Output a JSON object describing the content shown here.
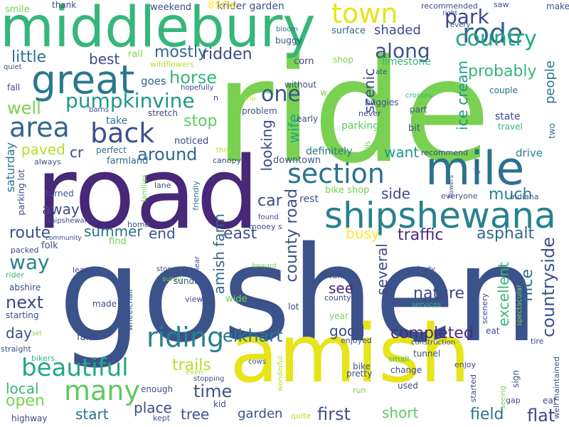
{
  "words": [
    {
      "t": "goshen",
      "c": "#3b528b"
    },
    {
      "t": "ride",
      "c": "#7ad151"
    },
    {
      "t": "road",
      "c": "#482878"
    },
    {
      "t": "amish",
      "c": "#e7e419"
    },
    {
      "t": "middlebury",
      "c": "#35b779"
    },
    {
      "t": "mile",
      "c": "#2c728e"
    },
    {
      "t": "shipshewana",
      "c": "#26828e"
    },
    {
      "t": "great",
      "c": "#2a788e"
    },
    {
      "t": "section",
      "c": "#2c728e"
    },
    {
      "t": "riding",
      "c": "#26828e"
    },
    {
      "t": "town",
      "c": "#e7e419"
    },
    {
      "t": "rode",
      "c": "#31688e"
    },
    {
      "t": "back",
      "c": "#3b528b"
    },
    {
      "t": "area",
      "c": "#31688e"
    },
    {
      "t": "beautiful",
      "c": "#22a884"
    },
    {
      "t": "many",
      "c": "#5ec962"
    },
    {
      "t": "pumpkinvine",
      "c": "#1f988b"
    },
    {
      "t": "country",
      "c": "#22a884"
    },
    {
      "t": "one",
      "c": "#3b528b"
    },
    {
      "t": "park",
      "c": "#3e4989"
    },
    {
      "t": "along",
      "c": "#3b528b"
    },
    {
      "t": "little",
      "c": "#2c728e"
    },
    {
      "t": "best",
      "c": "#3e4989"
    },
    {
      "t": "mostly",
      "c": "#31688e"
    },
    {
      "t": "ridden",
      "c": "#3e4989"
    },
    {
      "t": "well",
      "c": "#7ad151"
    },
    {
      "t": "horse",
      "c": "#35b779"
    },
    {
      "t": "stop",
      "c": "#5ec962"
    },
    {
      "t": "scenic",
      "c": "#3e4989"
    },
    {
      "t": "looking",
      "c": "#3e4989"
    },
    {
      "t": "wife",
      "c": "#22a884"
    },
    {
      "t": "around",
      "c": "#31688e"
    },
    {
      "t": "want",
      "c": "#1f988b"
    },
    {
      "t": "ice cream",
      "c": "#1f988b"
    },
    {
      "t": "people",
      "c": "#2a788e"
    },
    {
      "t": "probably",
      "c": "#35b779"
    },
    {
      "t": "paved",
      "c": "#b5de2b"
    },
    {
      "t": "cr",
      "c": "#3e4989"
    },
    {
      "t": "way",
      "c": "#26828e"
    },
    {
      "t": "route",
      "c": "#3b528b"
    },
    {
      "t": "summer",
      "c": "#2c728e"
    },
    {
      "t": "end",
      "c": "#3b528b"
    },
    {
      "t": "away",
      "c": "#3e4989"
    },
    {
      "t": "car",
      "c": "#3e4989"
    },
    {
      "t": "side",
      "c": "#3e4989"
    },
    {
      "t": "much",
      "c": "#26828e"
    },
    {
      "t": "traffic",
      "c": "#472d7b"
    },
    {
      "t": "asphalt",
      "c": "#31688e"
    },
    {
      "t": "east",
      "c": "#3b528b"
    },
    {
      "t": "busy",
      "c": "#fde725"
    },
    {
      "t": "county road",
      "c": "#3b528b"
    },
    {
      "t": "amish farm",
      "c": "#31688e"
    },
    {
      "t": "several",
      "c": "#3e4989"
    },
    {
      "t": "nature",
      "c": "#3e4989"
    },
    {
      "t": "see",
      "c": "#482878"
    },
    {
      "t": "countryside",
      "c": "#3b528b"
    },
    {
      "t": "nice",
      "c": "#31688e"
    },
    {
      "t": "excellent",
      "c": "#35b779"
    },
    {
      "t": "next",
      "c": "#3e4989"
    },
    {
      "t": "day",
      "c": "#3b528b"
    },
    {
      "t": "elkhart",
      "c": "#2c728e"
    },
    {
      "t": "good",
      "c": "#3e4989"
    },
    {
      "t": "completed",
      "c": "#472d7b"
    },
    {
      "t": "time",
      "c": "#3b528b"
    },
    {
      "t": "trails",
      "c": "#b5de2b"
    },
    {
      "t": "local",
      "c": "#35b779"
    },
    {
      "t": "open",
      "c": "#7ad151"
    },
    {
      "t": "start",
      "c": "#2c728e"
    },
    {
      "t": "place",
      "c": "#3e4989"
    },
    {
      "t": "tree",
      "c": "#3b528b"
    },
    {
      "t": "first",
      "c": "#3b528b"
    },
    {
      "t": "short",
      "c": "#5ec962"
    },
    {
      "t": "field",
      "c": "#2c728e"
    },
    {
      "t": "flat",
      "c": "#3e4989"
    },
    {
      "t": "garden",
      "c": "#3b528b"
    },
    {
      "t": "shaded",
      "c": "#3e4989"
    },
    {
      "t": "saturday",
      "c": "#2c728e"
    },
    {
      "t": "parking lot",
      "c": "#3e4989"
    },
    {
      "t": "parking",
      "c": "#5ec962"
    },
    {
      "t": "definitely",
      "c": "#2c728e"
    },
    {
      "t": "downtown",
      "c": "#3b528b"
    },
    {
      "t": "farmland",
      "c": "#31688e"
    },
    {
      "t": "noticed",
      "c": "#3e4989"
    },
    {
      "t": "perfect",
      "c": "#2c728e"
    },
    {
      "t": "take",
      "c": "#2c728e"
    },
    {
      "t": "stretch",
      "c": "#3e4989"
    },
    {
      "t": "goes",
      "c": "#31688e"
    },
    {
      "t": "krider garden",
      "c": "#3b528b"
    },
    {
      "t": "850w",
      "c": "#fde725"
    },
    {
      "t": "weekend",
      "c": "#3e4989"
    },
    {
      "t": "thank",
      "c": "#3e4989"
    },
    {
      "t": "smile",
      "c": "#7ad151"
    },
    {
      "t": "recommended",
      "c": "#3e4989"
    },
    {
      "t": "right",
      "c": "#3b528b"
    },
    {
      "t": "every",
      "c": "#3b528b"
    },
    {
      "t": "saw",
      "c": "#3b528b"
    },
    {
      "t": "make",
      "c": "#3b528b"
    },
    {
      "t": "surface",
      "c": "#31688e"
    },
    {
      "t": "bloom",
      "c": "#2c728e"
    },
    {
      "t": "buggy",
      "c": "#3b528b"
    },
    {
      "t": "limestone",
      "c": "#35b779"
    },
    {
      "t": "corn",
      "c": "#3e4989"
    },
    {
      "t": "shop",
      "c": "#7ad151"
    },
    {
      "t": "ate",
      "c": "#3b528b"
    },
    {
      "t": "rail",
      "c": "#7ad151"
    },
    {
      "t": "wildflowers",
      "c": "#b5de2b"
    },
    {
      "t": "hopefully",
      "c": "#3e4989"
    },
    {
      "t": "without",
      "c": "#3b528b"
    },
    {
      "t": "w",
      "c": "#7ad151"
    },
    {
      "t": "buggies",
      "c": "#3b528b"
    },
    {
      "t": "never",
      "c": "#3e4989"
    },
    {
      "t": "part",
      "c": "#3b528b"
    },
    {
      "t": "crosses",
      "c": "#35b779"
    },
    {
      "t": "couple",
      "c": "#2c728e"
    },
    {
      "t": "state",
      "c": "#3e4989"
    },
    {
      "t": "travel",
      "c": "#35b779"
    },
    {
      "t": "bit",
      "c": "#3b528b"
    },
    {
      "t": "early",
      "c": "#3e4989"
    },
    {
      "t": "problem",
      "c": "#3b528b"
    },
    {
      "t": "trip",
      "c": "#b5de2b"
    },
    {
      "t": "n",
      "c": "#3e4989"
    },
    {
      "t": "fall",
      "c": "#3e4989"
    },
    {
      "t": "quiet",
      "c": "#3b528b"
    },
    {
      "t": "barns",
      "c": "#3e4989"
    },
    {
      "t": "recommend",
      "c": "#3e4989"
    },
    {
      "t": "drive",
      "c": "#26828e"
    },
    {
      "t": "give",
      "c": "#3e4989"
    },
    {
      "t": "two",
      "c": "#2c728e"
    },
    {
      "t": "hills",
      "c": "#7ad151"
    },
    {
      "t": "flowers",
      "c": "#3b528b"
    },
    {
      "t": "everyone",
      "c": "#3b528b"
    },
    {
      "t": "indiana",
      "c": "#3b528b"
    },
    {
      "t": "bike shop",
      "c": "#7ad151"
    },
    {
      "t": "rest",
      "c": "#3b528b"
    },
    {
      "t": "thru",
      "c": "#b5de2b"
    },
    {
      "t": "canopy",
      "c": "#3e4989"
    },
    {
      "t": "always",
      "c": "#3b528b"
    },
    {
      "t": "lane",
      "c": "#3e4989"
    },
    {
      "t": "turned",
      "c": "#3b528b"
    },
    {
      "t": "families",
      "c": "#7ad151"
    },
    {
      "t": "friendly",
      "c": "#2c728e"
    },
    {
      "t": "shipshewana",
      "c": "#3e4989"
    },
    {
      "t": "home",
      "c": "#3b528b"
    },
    {
      "t": "community",
      "c": "#3b528b"
    },
    {
      "t": "found",
      "c": "#3e4989"
    },
    {
      "t": "mooey s",
      "c": "#3e4989"
    },
    {
      "t": "folk",
      "c": "#3e4989"
    },
    {
      "t": "find",
      "c": "#7ad151"
    },
    {
      "t": "packed",
      "c": "#3e4989"
    },
    {
      "t": "rider",
      "c": "#35b779"
    },
    {
      "t": "leave",
      "c": "#3e4989"
    },
    {
      "t": "stopped",
      "c": "#3b528b"
    },
    {
      "t": "sunny",
      "c": "#7ad151"
    },
    {
      "t": "forward",
      "c": "#7ad151"
    },
    {
      "t": "shady",
      "c": "#3b528b"
    },
    {
      "t": "abshire",
      "c": "#3e4989"
    },
    {
      "t": "turn",
      "c": "#3b528b"
    },
    {
      "t": "sunday",
      "c": "#3b528b"
    },
    {
      "t": "view",
      "c": "#3e4989"
    },
    {
      "t": "near",
      "c": "#3e4989"
    },
    {
      "t": "wheelchair",
      "c": "#3b528b"
    },
    {
      "t": "made",
      "c": "#3b528b"
    },
    {
      "t": "wide",
      "c": "#7ad151"
    },
    {
      "t": "county",
      "c": "#3e4989"
    },
    {
      "t": "lot",
      "c": "#3e4989"
    },
    {
      "t": "starting",
      "c": "#3e4989"
    },
    {
      "t": "scenery",
      "c": "#3e4989"
    },
    {
      "t": "spectacular",
      "c": "#7ad151"
    },
    {
      "t": "services",
      "c": "#35b779"
    },
    {
      "t": "year",
      "c": "#7ad151"
    },
    {
      "t": "set",
      "c": "#7ad151"
    },
    {
      "t": "straight",
      "c": "#3b528b"
    },
    {
      "t": "farm",
      "c": "#3e4989"
    },
    {
      "t": "eat",
      "c": "#3e4989"
    },
    {
      "t": "enjoyed",
      "c": "#3e4989"
    },
    {
      "t": "construction",
      "c": "#3e4989"
    },
    {
      "t": "tire",
      "c": "#3e4989"
    },
    {
      "t": "bikers",
      "c": "#35b779"
    },
    {
      "t": "cows",
      "c": "#3b528b"
    },
    {
      "t": "tunnel",
      "c": "#3b528b"
    },
    {
      "t": "small",
      "c": "#35b779"
    },
    {
      "t": "enjoy",
      "c": "#3e4989"
    },
    {
      "t": "bike",
      "c": "#3b528b"
    },
    {
      "t": "pretty",
      "c": "#3b528b"
    },
    {
      "t": "change",
      "c": "#3e4989"
    },
    {
      "t": "sign",
      "c": "#3e4989"
    },
    {
      "t": "well maintained",
      "c": "#3b528b"
    },
    {
      "t": "even",
      "c": "#b5de2b"
    },
    {
      "t": "stopping",
      "c": "#3b528b"
    },
    {
      "t": "wonderful",
      "c": "#b5de2b"
    },
    {
      "t": "used",
      "c": "#3e4989"
    },
    {
      "t": "started",
      "c": "#3e4989"
    },
    {
      "t": "seeing",
      "c": "#7ad151"
    },
    {
      "t": "gap",
      "c": "#3b528b"
    },
    {
      "t": "eat",
      "c": "#3e4989"
    },
    {
      "t": "enough",
      "c": "#3b528b"
    },
    {
      "t": "kid",
      "c": "#3e4989"
    },
    {
      "t": "run",
      "c": "#7ad151"
    },
    {
      "t": "highway",
      "c": "#3e4989"
    },
    {
      "t": "kept",
      "c": "#3b528b"
    },
    {
      "t": "quite",
      "c": "#b5de2b"
    }
  ]
}
